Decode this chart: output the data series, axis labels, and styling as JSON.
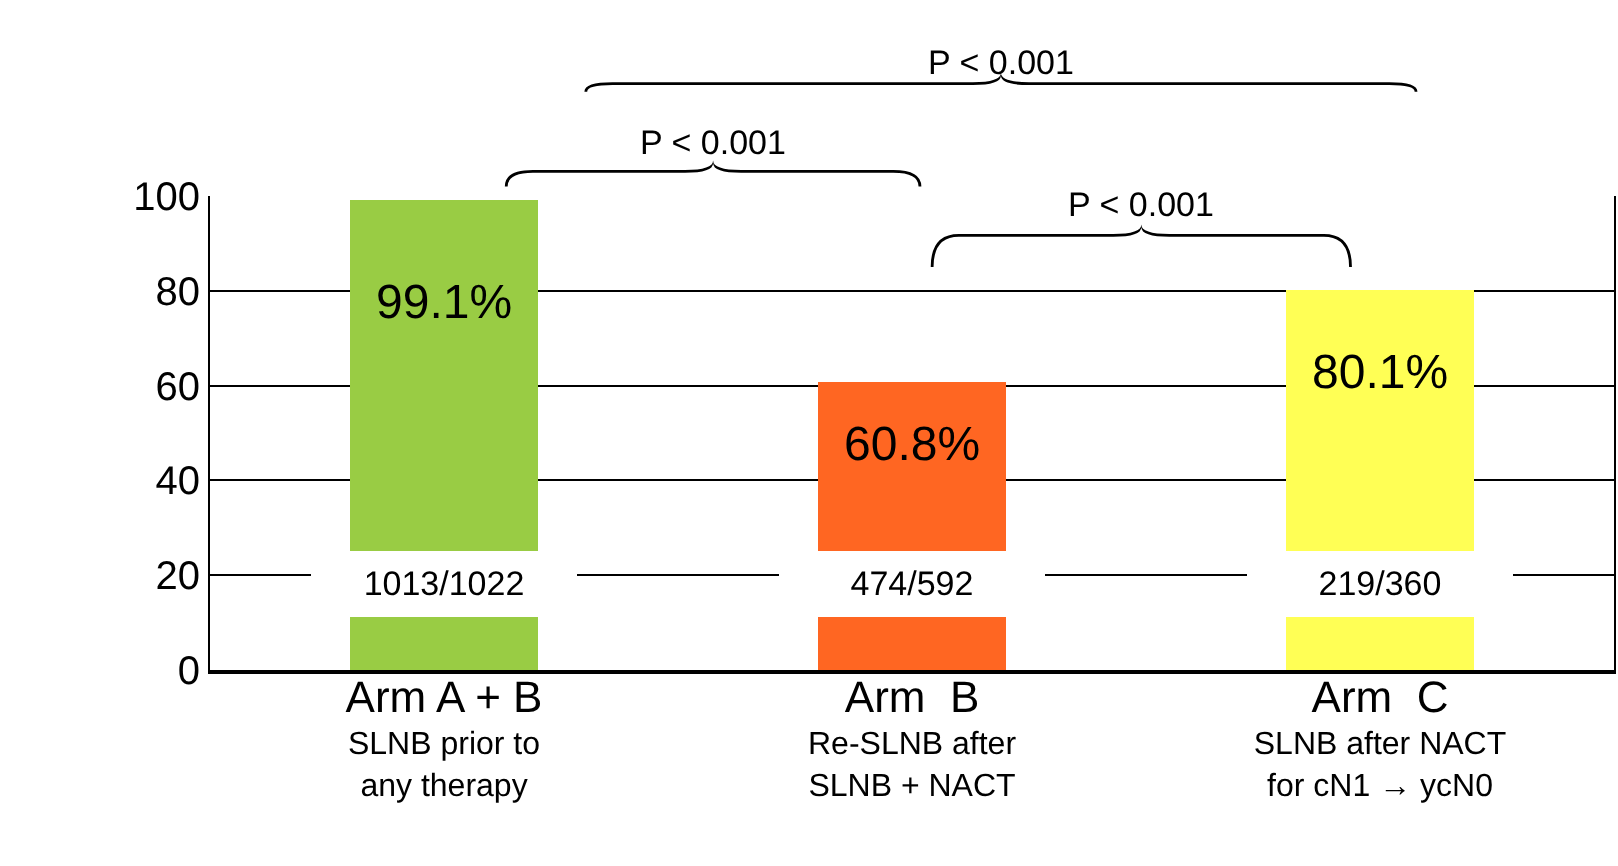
{
  "chart_data": {
    "type": "bar",
    "categories": [
      "Arm A + B\nSLNB prior to\nany therapy",
      "Arm  B\nRe-SLNB after\nSLNB + NACT",
      "Arm  C\nSLNB after NACT\nfor cN1 → ycN0"
    ],
    "values": [
      99.1,
      60.8,
      80.1
    ],
    "colors": [
      "#99cc44",
      "#ff6622",
      "#ffff55"
    ],
    "value_labels": [
      "99.1%",
      "60.8%",
      "80.1%"
    ],
    "annotations": [
      "1013/1022",
      "474/592",
      "219/360",
      "P < 0.001",
      "P < 0.001",
      "P < 0.001"
    ],
    "ylim": [
      0,
      100
    ],
    "yticks": [
      0,
      20,
      40,
      60,
      80,
      100
    ],
    "grid": "y"
  }
}
